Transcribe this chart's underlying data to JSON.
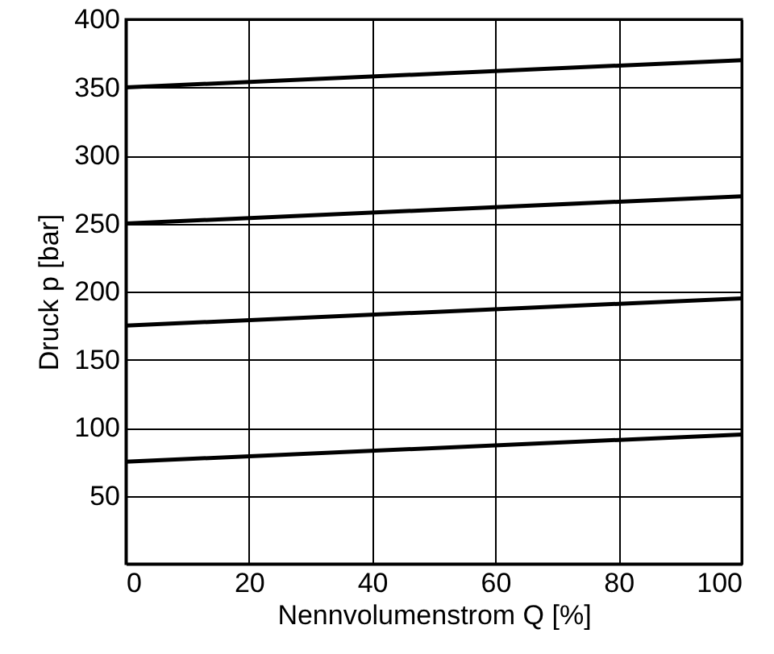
{
  "chart_data": {
    "type": "line",
    "xlabel": "Nennvolumenstrom Q [%]",
    "ylabel": "Druck p [bar]",
    "x": [
      0,
      100
    ],
    "series": [
      {
        "color": "#000000",
        "values": [
          350,
          370
        ]
      },
      {
        "color": "#000000",
        "values": [
          250,
          270
        ]
      },
      {
        "color": "#000000",
        "values": [
          175,
          195
        ]
      },
      {
        "color": "#000000",
        "values": [
          75,
          95
        ]
      }
    ],
    "xlim": [
      0,
      100
    ],
    "xticks": [
      0,
      20,
      40,
      60,
      80,
      100
    ],
    "ylim": [
      0,
      400
    ],
    "yticks": [
      50,
      100,
      150,
      200,
      250,
      300,
      350,
      400
    ],
    "grid": true,
    "marker": "none",
    "line_style": "solid"
  }
}
